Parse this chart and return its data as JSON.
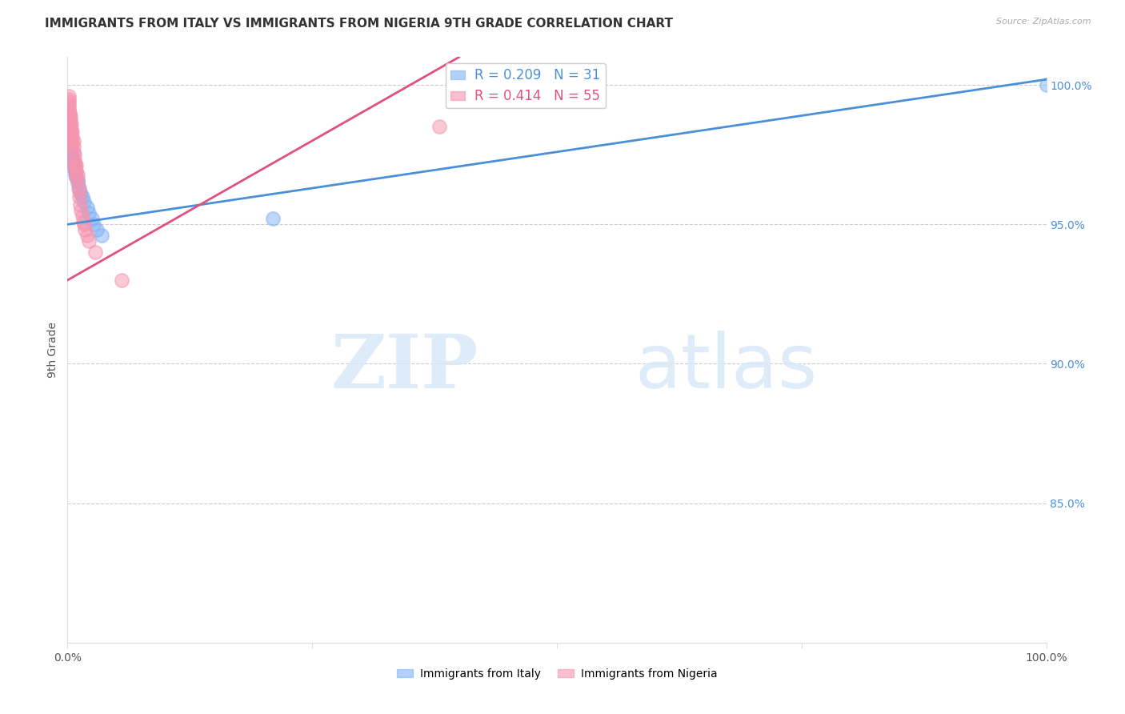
{
  "title": "IMMIGRANTS FROM ITALY VS IMMIGRANTS FROM NIGERIA 9TH GRADE CORRELATION CHART",
  "source": "Source: ZipAtlas.com",
  "ylabel": "9th Grade",
  "watermark_zip": "ZIP",
  "watermark_atlas": "atlas",
  "italy_R": 0.209,
  "italy_N": 31,
  "nigeria_R": 0.414,
  "nigeria_N": 55,
  "italy_color": "#7fb3f5",
  "nigeria_color": "#f595b0",
  "italy_line_color": "#4a90d9",
  "nigeria_line_color": "#e05080",
  "italy_x": [
    0.001,
    0.001,
    0.001,
    0.002,
    0.002,
    0.003,
    0.003,
    0.004,
    0.004,
    0.005,
    0.005,
    0.006,
    0.007,
    0.007,
    0.008,
    0.008,
    0.009,
    0.01,
    0.01,
    0.012,
    0.014,
    0.015,
    0.017,
    0.02,
    0.022,
    0.025,
    0.027,
    0.03,
    0.035,
    0.21,
    1.0
  ],
  "italy_y": [
    0.985,
    0.983,
    0.982,
    0.98,
    0.979,
    0.978,
    0.977,
    0.976,
    0.975,
    0.974,
    0.973,
    0.972,
    0.971,
    0.97,
    0.969,
    0.968,
    0.967,
    0.966,
    0.965,
    0.963,
    0.961,
    0.96,
    0.958,
    0.956,
    0.954,
    0.952,
    0.95,
    0.948,
    0.946,
    0.952,
    1.0
  ],
  "nigeria_x": [
    0.001,
    0.001,
    0.001,
    0.001,
    0.001,
    0.001,
    0.001,
    0.001,
    0.001,
    0.001,
    0.002,
    0.002,
    0.002,
    0.002,
    0.002,
    0.003,
    0.003,
    0.003,
    0.003,
    0.003,
    0.003,
    0.004,
    0.004,
    0.004,
    0.004,
    0.005,
    0.005,
    0.005,
    0.006,
    0.006,
    0.006,
    0.007,
    0.007,
    0.007,
    0.008,
    0.008,
    0.009,
    0.009,
    0.009,
    0.01,
    0.01,
    0.011,
    0.012,
    0.012,
    0.013,
    0.014,
    0.015,
    0.016,
    0.017,
    0.018,
    0.02,
    0.022,
    0.028,
    0.055,
    0.38
  ],
  "nigeria_y": [
    0.996,
    0.995,
    0.994,
    0.993,
    0.992,
    0.991,
    0.99,
    0.989,
    0.988,
    0.987,
    0.99,
    0.988,
    0.986,
    0.984,
    0.982,
    0.989,
    0.987,
    0.985,
    0.983,
    0.981,
    0.979,
    0.986,
    0.984,
    0.982,
    0.98,
    0.983,
    0.981,
    0.979,
    0.98,
    0.978,
    0.976,
    0.975,
    0.973,
    0.971,
    0.972,
    0.97,
    0.971,
    0.969,
    0.967,
    0.968,
    0.966,
    0.963,
    0.962,
    0.96,
    0.957,
    0.955,
    0.953,
    0.951,
    0.95,
    0.948,
    0.946,
    0.944,
    0.94,
    0.93,
    0.985
  ],
  "xlim": [
    0.0,
    1.0
  ],
  "ylim": [
    0.8,
    1.01
  ],
  "yticks": [
    0.85,
    0.9,
    0.95,
    1.0
  ],
  "ytick_labels": [
    "85.0%",
    "90.0%",
    "95.0%",
    "100.0%"
  ],
  "italy_trendline_x0": 0.0,
  "italy_trendline_y0": 0.95,
  "italy_trendline_x1": 1.0,
  "italy_trendline_y1": 1.002,
  "nigeria_trendline_x0": 0.0,
  "nigeria_trendline_y0": 0.93,
  "nigeria_trendline_x1": 0.4,
  "nigeria_trendline_y1": 1.01,
  "grid_color": "#cccccc",
  "bg_color": "#ffffff",
  "title_fontsize": 11,
  "legend_fontsize": 11
}
